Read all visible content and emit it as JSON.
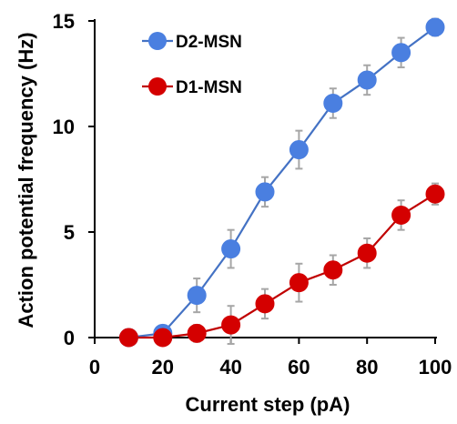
{
  "chart_data": {
    "type": "line",
    "title": "",
    "xlabel": "Current step (pA)",
    "ylabel": "Action potential frequency (Hz)",
    "xlim": [
      0,
      100
    ],
    "ylim": [
      0,
      15
    ],
    "xticks": [
      "0",
      "20",
      "40",
      "60",
      "80",
      "100"
    ],
    "yticks": [
      "0",
      "5",
      "10",
      "15"
    ],
    "grid": false,
    "legend_position": "top-left",
    "series": [
      {
        "name": "D2-MSN",
        "color": "#4472C4",
        "marker_color": "#4A7FE0",
        "x": [
          10,
          20,
          30,
          40,
          50,
          60,
          70,
          80,
          90,
          100
        ],
        "y": [
          0,
          0.2,
          2.0,
          4.2,
          6.9,
          8.9,
          11.1,
          12.2,
          13.5,
          14.7
        ],
        "error": [
          0,
          0.2,
          0.8,
          0.9,
          0.7,
          0.9,
          0.7,
          0.7,
          0.7,
          0.4
        ]
      },
      {
        "name": "D1-MSN",
        "color": "#C00000",
        "marker_color": "#D40000",
        "x": [
          10,
          20,
          30,
          40,
          50,
          60,
          70,
          80,
          90,
          100
        ],
        "y": [
          0,
          0,
          0.2,
          0.6,
          1.6,
          2.6,
          3.2,
          4.0,
          5.8,
          6.8
        ],
        "error": [
          0,
          0,
          0.4,
          0.9,
          0.7,
          0.9,
          0.7,
          0.7,
          0.7,
          0.5
        ]
      }
    ]
  }
}
